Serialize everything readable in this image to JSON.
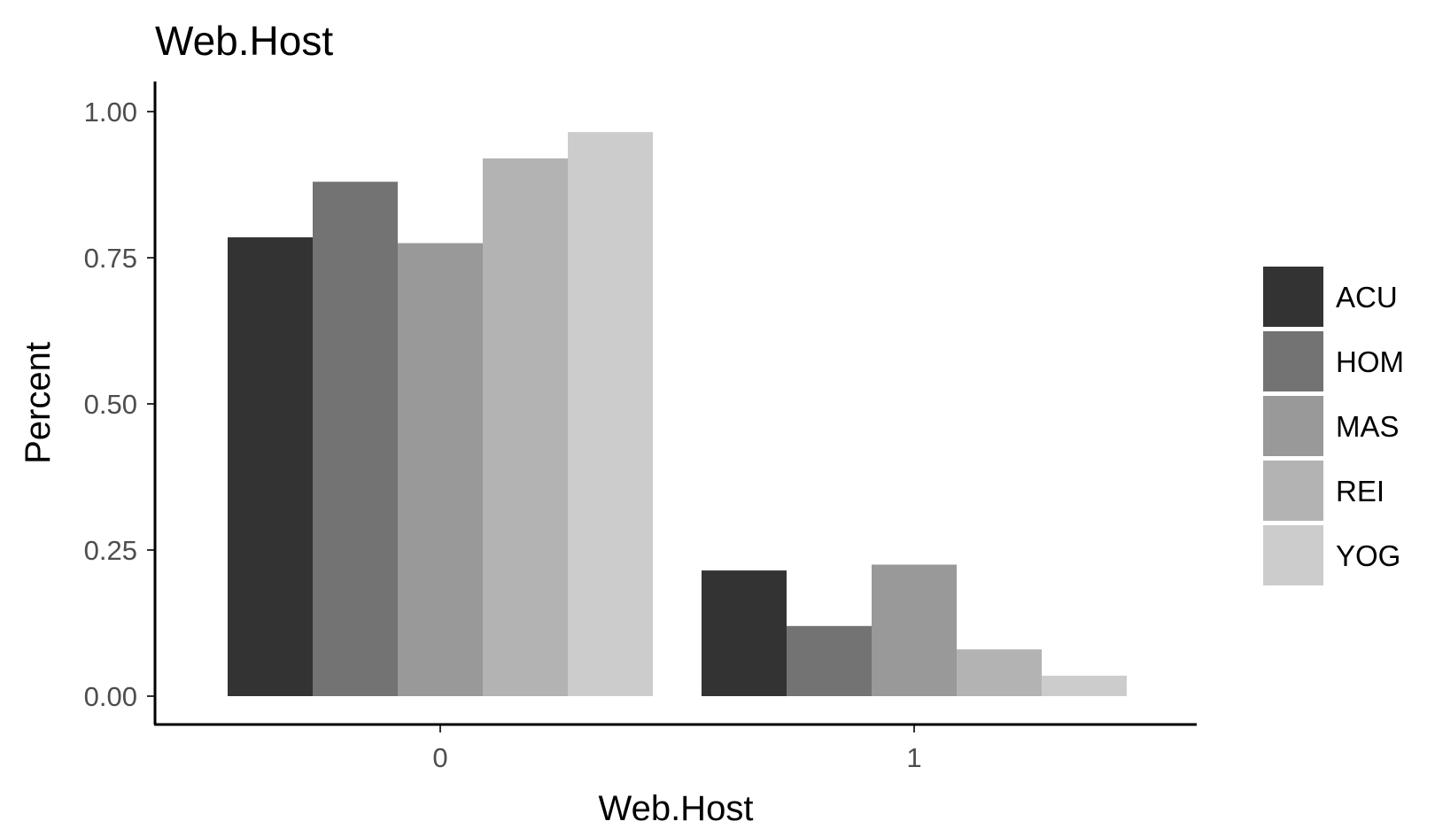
{
  "chart_data": {
    "type": "bar",
    "title": "Web.Host",
    "xlabel": "Web.Host",
    "ylabel": "Percent",
    "categories": [
      "0",
      "1"
    ],
    "ylim": [
      0,
      1.05
    ],
    "yticks": [
      "0.00",
      "0.25",
      "0.50",
      "0.75",
      "1.00"
    ],
    "grid": false,
    "legend_position": "right",
    "series": [
      {
        "name": "ACU",
        "color": "#333333",
        "values": [
          0.785,
          0.215
        ]
      },
      {
        "name": "HOM",
        "color": "#737373",
        "values": [
          0.88,
          0.12
        ]
      },
      {
        "name": "MAS",
        "color": "#999999",
        "values": [
          0.775,
          0.225
        ]
      },
      {
        "name": "REI",
        "color": "#b3b3b3",
        "values": [
          0.92,
          0.08
        ]
      },
      {
        "name": "YOG",
        "color": "#cccccc",
        "values": [
          0.965,
          0.035
        ]
      }
    ]
  }
}
